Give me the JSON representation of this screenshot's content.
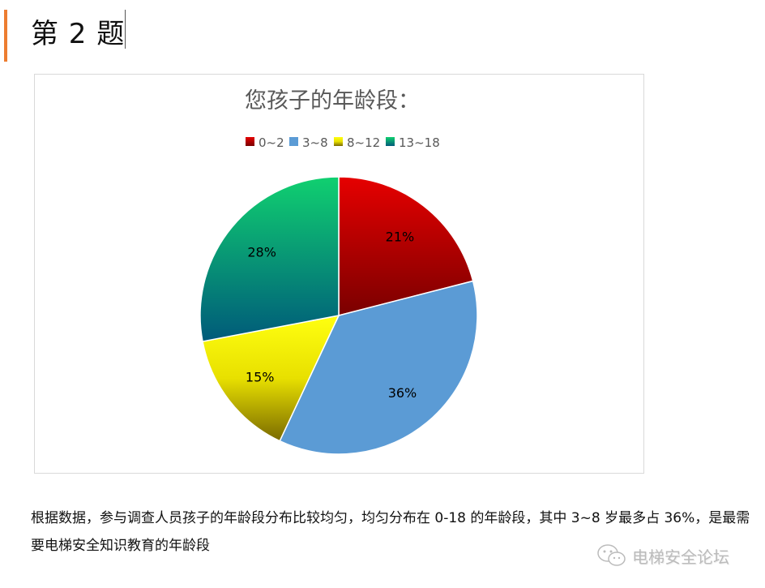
{
  "heading": "第 2 题",
  "chart_data": {
    "type": "pie",
    "title": "您孩子的年龄段：",
    "categories": [
      "0~2",
      "3~8",
      "8~12",
      "13~18"
    ],
    "values": [
      21,
      36,
      15,
      28
    ],
    "labels": [
      "21%",
      "36%",
      "15%",
      "28%"
    ],
    "colors": [
      "#c00000",
      "#5b9bd5",
      "#ffff00",
      "#00b050"
    ],
    "legend": "top"
  },
  "paragraph": "根据数据，参与调查人员孩子的年龄段分布比较均匀，均匀分布在 0-18 的年龄段，其中 3~8 岁最多占 36%，是最需要电梯安全知识教育的年龄段",
  "watermark": "电梯安全论坛"
}
